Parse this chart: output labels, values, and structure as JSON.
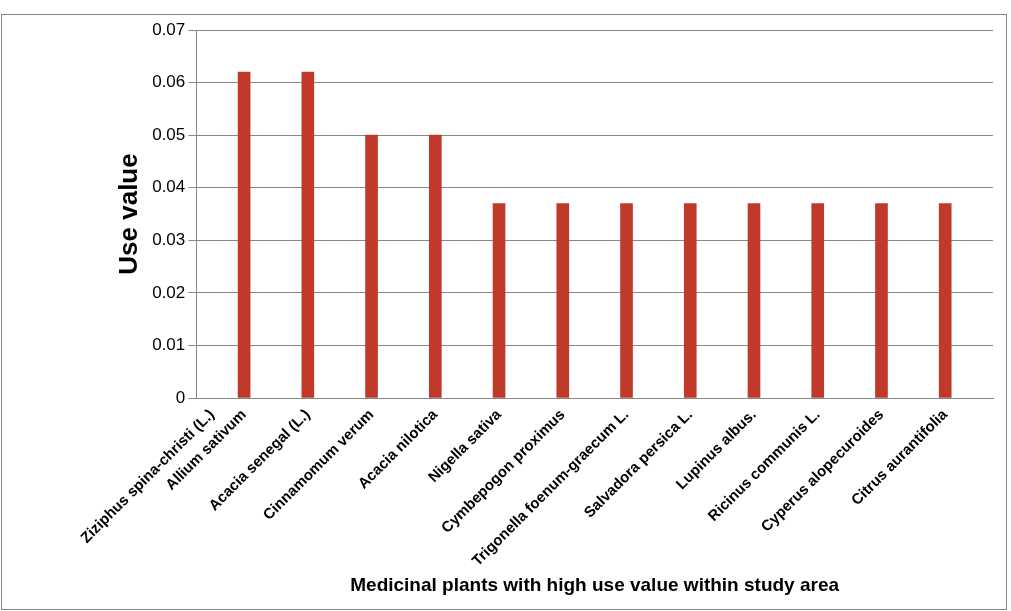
{
  "chart_data": {
    "type": "bar",
    "xlabel": "Medicinal plants with high use value within study area",
    "ylabel": "Use value",
    "categories": [
      "Ziziphus spina-christi (L.)",
      "Allium sativum",
      null,
      "Acacia senegal (L.)",
      null,
      "Cinnamomum verum",
      null,
      "Acacia nilotica",
      null,
      "Nigella sativa",
      null,
      "Cymbepogon proximus",
      null,
      "Trigonella foenum-graecum L.",
      null,
      "Salvadora persica L.",
      null,
      "Lupinus albus.",
      null,
      "Ricinus communis L.",
      null,
      "Cyperus alopecuroides",
      null,
      "Citrus aurantifolia",
      null
    ],
    "values": [
      null,
      0.062,
      null,
      0.062,
      null,
      0.05,
      null,
      0.05,
      null,
      0.037,
      null,
      0.037,
      null,
      0.037,
      null,
      0.037,
      null,
      0.037,
      null,
      0.037,
      null,
      0.037,
      null,
      0.037,
      null
    ],
    "color": "#c0392b",
    "ylim": [
      0,
      0.07
    ],
    "yticks": [
      0,
      0.01,
      0.02,
      0.03,
      0.04,
      0.05,
      0.06,
      0.07
    ],
    "grid": "y",
    "legend": false
  }
}
